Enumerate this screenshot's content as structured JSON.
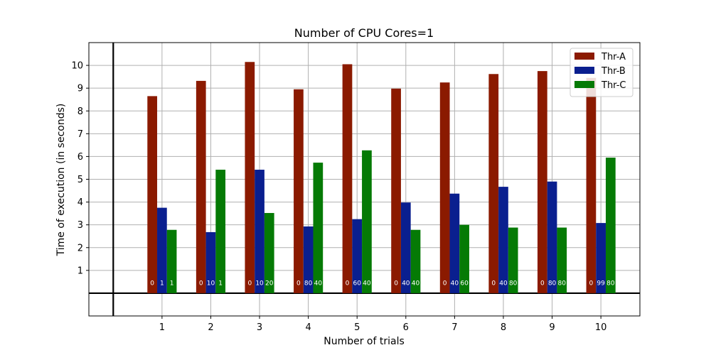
{
  "chart_data": {
    "type": "bar",
    "title": "Number of CPU Cores=1",
    "xlabel": "Number of trials",
    "ylabel": "Time of execution (in seconds)",
    "categories": [
      "1",
      "2",
      "3",
      "4",
      "5",
      "6",
      "7",
      "8",
      "9",
      "10"
    ],
    "y_ticks": [
      1,
      2,
      3,
      4,
      5,
      6,
      7,
      8,
      9,
      10
    ],
    "ylim": [
      -1,
      11
    ],
    "xlim": [
      -0.5,
      10.8
    ],
    "grid": true,
    "legend_position": "top-right",
    "series": [
      {
        "name": "Thr-A",
        "color": "#8B1A00",
        "values": [
          8.65,
          9.32,
          10.15,
          8.95,
          10.05,
          8.98,
          9.25,
          9.62,
          9.75,
          9.45
        ],
        "bar_labels": [
          "0",
          "0",
          "0",
          "0",
          "0",
          "0",
          "0",
          "0",
          "0",
          "0"
        ]
      },
      {
        "name": "Thr-B",
        "color": "#0A1F8F",
        "values": [
          3.75,
          2.68,
          5.42,
          2.93,
          3.25,
          3.98,
          4.37,
          4.67,
          4.9,
          3.08
        ],
        "bar_labels": [
          "1",
          "10",
          "10",
          "80",
          "60",
          "40",
          "40",
          "40",
          "80",
          "99"
        ]
      },
      {
        "name": "Thr-C",
        "color": "#057A05",
        "values": [
          2.78,
          5.42,
          3.52,
          5.73,
          6.27,
          2.78,
          3.0,
          2.88,
          2.88,
          5.95
        ],
        "bar_labels": [
          "1",
          "1",
          "20",
          "40",
          "40",
          "40",
          "60",
          "80",
          "80",
          "80"
        ]
      }
    ]
  }
}
